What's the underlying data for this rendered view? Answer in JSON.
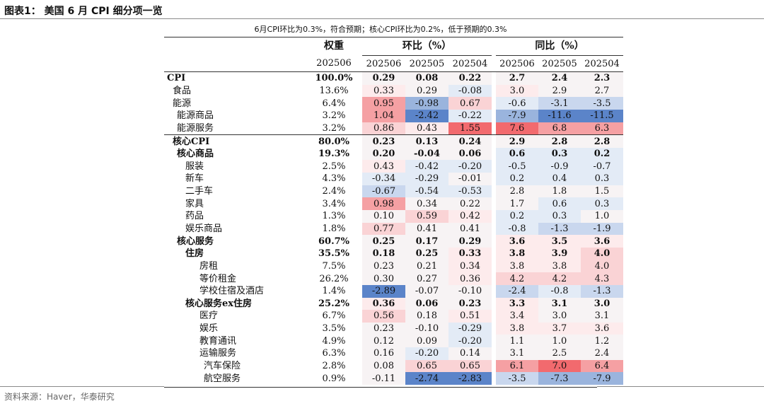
{
  "figure_title": "图表1：  美国 6 月 CPI 细分项一览",
  "subtitle": "6月CPI环比为0.3%，符合预期；核心CPI环比为0.2%，低于预期的0.3%",
  "source": "资料来源：Haver，华泰研究",
  "headers": {
    "weight": "权重",
    "mom": "环比（%）",
    "yoy": "同比（%）",
    "weight_period": "202506",
    "periods": [
      "202506",
      "202505",
      "202504",
      "202506",
      "202505",
      "202504"
    ]
  },
  "colors": {
    "red_strong": "#f26a6e",
    "red_mid": "#f5a0a3",
    "red_light": "#fad3d5",
    "red_faint": "#fdebec",
    "blue_strong": "#5b84c9",
    "blue_mid": "#9ab4dd",
    "blue_light": "#c9d7ee",
    "blue_faint": "#e3ebf6",
    "neutral": "#f7f3f4"
  },
  "rows": [
    {
      "label": "CPI",
      "indent": 0,
      "bold": true,
      "weight": "100.0%",
      "mom": [
        "0.29",
        "0.08",
        "0.22"
      ],
      "yoy": [
        "2.7",
        "2.4",
        "2.3"
      ],
      "mom_c": [
        "neutral",
        "neutral",
        "neutral"
      ],
      "yoy_c": [
        "neutral",
        "neutral",
        "neutral"
      ]
    },
    {
      "label": "食品",
      "indent": 1,
      "bold": false,
      "weight": "13.6%",
      "mom": [
        "0.33",
        "0.29",
        "-0.08"
      ],
      "yoy": [
        "3.0",
        "2.9",
        "2.7"
      ],
      "mom_c": [
        "red_faint",
        "neutral",
        "blue_faint"
      ],
      "yoy_c": [
        "red_faint",
        "neutral",
        "neutral"
      ]
    },
    {
      "label": "能源",
      "indent": 1,
      "bold": false,
      "weight": "6.4%",
      "mom": [
        "0.95",
        "-0.98",
        "0.67"
      ],
      "yoy": [
        "-0.6",
        "-3.1",
        "-3.5"
      ],
      "mom_c": [
        "red_mid",
        "blue_mid",
        "red_light"
      ],
      "yoy_c": [
        "blue_faint",
        "blue_light",
        "blue_light"
      ]
    },
    {
      "label": "能源商品",
      "indent": 2,
      "bold": false,
      "weight": "3.2%",
      "mom": [
        "1.04",
        "-2.42",
        "-0.22"
      ],
      "yoy": [
        "-7.9",
        "-11.6",
        "-11.5"
      ],
      "mom_c": [
        "red_mid",
        "blue_strong",
        "blue_faint"
      ],
      "yoy_c": [
        "blue_mid",
        "blue_strong",
        "blue_strong"
      ]
    },
    {
      "label": "能源服务",
      "indent": 2,
      "bold": false,
      "weight": "3.2%",
      "mom": [
        "0.86",
        "0.43",
        "1.55"
      ],
      "yoy": [
        "7.6",
        "6.8",
        "6.3"
      ],
      "mom_c": [
        "red_light",
        "red_faint",
        "red_strong"
      ],
      "yoy_c": [
        "red_strong",
        "red_mid",
        "red_mid"
      ]
    },
    {
      "label": "核心CPI",
      "indent": 1,
      "bold": true,
      "weight": "80.0%",
      "mom": [
        "0.23",
        "0.13",
        "0.24"
      ],
      "yoy": [
        "2.9",
        "2.8",
        "2.8"
      ],
      "mom_c": [
        "neutral",
        "neutral",
        "neutral"
      ],
      "yoy_c": [
        "neutral",
        "neutral",
        "neutral"
      ]
    },
    {
      "label": "核心商品",
      "indent": 2,
      "bold": true,
      "weight": "19.3%",
      "mom": [
        "0.20",
        "-0.04",
        "0.06"
      ],
      "yoy": [
        "0.6",
        "0.3",
        "0.2"
      ],
      "mom_c": [
        "neutral",
        "neutral",
        "neutral"
      ],
      "yoy_c": [
        "blue_faint",
        "blue_faint",
        "blue_faint"
      ]
    },
    {
      "label": "服装",
      "indent": 3,
      "bold": false,
      "weight": "2.5%",
      "mom": [
        "0.43",
        "-0.42",
        "-0.20"
      ],
      "yoy": [
        "-0.5",
        "-0.9",
        "-0.7"
      ],
      "mom_c": [
        "red_faint",
        "blue_faint",
        "blue_faint"
      ],
      "yoy_c": [
        "blue_faint",
        "blue_faint",
        "blue_faint"
      ]
    },
    {
      "label": "新车",
      "indent": 3,
      "bold": false,
      "weight": "4.3%",
      "mom": [
        "-0.34",
        "-0.29",
        "-0.01"
      ],
      "yoy": [
        "0.2",
        "0.4",
        "0.3"
      ],
      "mom_c": [
        "blue_faint",
        "blue_faint",
        "neutral"
      ],
      "yoy_c": [
        "blue_faint",
        "blue_faint",
        "blue_faint"
      ]
    },
    {
      "label": "二手车",
      "indent": 3,
      "bold": false,
      "weight": "2.4%",
      "mom": [
        "-0.67",
        "-0.54",
        "-0.53"
      ],
      "yoy": [
        "2.8",
        "1.8",
        "1.5"
      ],
      "mom_c": [
        "blue_light",
        "blue_faint",
        "blue_faint"
      ],
      "yoy_c": [
        "neutral",
        "neutral",
        "neutral"
      ]
    },
    {
      "label": "家具",
      "indent": 3,
      "bold": false,
      "weight": "3.4%",
      "mom": [
        "0.98",
        "0.34",
        "0.22"
      ],
      "yoy": [
        "1.7",
        "0.6",
        "0.3"
      ],
      "mom_c": [
        "red_mid",
        "neutral",
        "neutral"
      ],
      "yoy_c": [
        "neutral",
        "blue_faint",
        "blue_faint"
      ]
    },
    {
      "label": "药品",
      "indent": 3,
      "bold": false,
      "weight": "1.3%",
      "mom": [
        "0.10",
        "0.59",
        "0.42"
      ],
      "yoy": [
        "0.2",
        "0.3",
        "1.0"
      ],
      "mom_c": [
        "neutral",
        "red_light",
        "red_faint"
      ],
      "yoy_c": [
        "blue_faint",
        "blue_faint",
        "neutral"
      ]
    },
    {
      "label": "娱乐商品",
      "indent": 3,
      "bold": false,
      "weight": "1.8%",
      "mom": [
        "0.77",
        "0.41",
        "0.41"
      ],
      "yoy": [
        "-0.8",
        "-1.3",
        "-1.9"
      ],
      "mom_c": [
        "red_light",
        "neutral",
        "neutral"
      ],
      "yoy_c": [
        "blue_faint",
        "blue_light",
        "blue_light"
      ]
    },
    {
      "label": "核心服务",
      "indent": 2,
      "bold": true,
      "weight": "60.7%",
      "mom": [
        "0.25",
        "0.17",
        "0.29"
      ],
      "yoy": [
        "3.6",
        "3.5",
        "3.6"
      ],
      "mom_c": [
        "neutral",
        "neutral",
        "neutral"
      ],
      "yoy_c": [
        "red_faint",
        "red_faint",
        "red_faint"
      ]
    },
    {
      "label": "住房",
      "indent": 3,
      "bold": true,
      "weight": "35.5%",
      "mom": [
        "0.18",
        "0.25",
        "0.33"
      ],
      "yoy": [
        "3.8",
        "3.9",
        "4.0"
      ],
      "mom_c": [
        "neutral",
        "neutral",
        "red_faint"
      ],
      "yoy_c": [
        "red_faint",
        "red_faint",
        "red_light"
      ]
    },
    {
      "label": "房租",
      "indent": 4,
      "bold": false,
      "weight": "7.5%",
      "mom": [
        "0.23",
        "0.21",
        "0.34"
      ],
      "yoy": [
        "3.8",
        "3.8",
        "4.0"
      ],
      "mom_c": [
        "neutral",
        "neutral",
        "red_faint"
      ],
      "yoy_c": [
        "red_faint",
        "red_faint",
        "red_light"
      ]
    },
    {
      "label": "等价租金",
      "indent": 4,
      "bold": false,
      "weight": "26.2%",
      "mom": [
        "0.30",
        "0.27",
        "0.36"
      ],
      "yoy": [
        "4.2",
        "4.2",
        "4.3"
      ],
      "mom_c": [
        "neutral",
        "neutral",
        "red_faint"
      ],
      "yoy_c": [
        "red_light",
        "red_light",
        "red_light"
      ]
    },
    {
      "label": "学校住宿及酒店",
      "indent": 4,
      "bold": false,
      "weight": "1.4%",
      "mom": [
        "-2.89",
        "-0.07",
        "-0.10"
      ],
      "yoy": [
        "-2.4",
        "-0.8",
        "-1.3"
      ],
      "mom_c": [
        "blue_strong",
        "neutral",
        "neutral"
      ],
      "yoy_c": [
        "blue_light",
        "blue_faint",
        "blue_light"
      ]
    },
    {
      "label": "核心服务ex住房",
      "indent": 3,
      "bold": true,
      "weight": "25.2%",
      "mom": [
        "0.36",
        "0.06",
        "0.23"
      ],
      "yoy": [
        "3.3",
        "3.1",
        "3.0"
      ],
      "mom_c": [
        "red_faint",
        "neutral",
        "neutral"
      ],
      "yoy_c": [
        "red_faint",
        "neutral",
        "neutral"
      ]
    },
    {
      "label": "医疗",
      "indent": 4,
      "bold": false,
      "weight": "6.7%",
      "mom": [
        "0.56",
        "0.18",
        "0.51"
      ],
      "yoy": [
        "3.4",
        "3.0",
        "3.1"
      ],
      "mom_c": [
        "red_light",
        "neutral",
        "red_faint"
      ],
      "yoy_c": [
        "red_faint",
        "neutral",
        "neutral"
      ]
    },
    {
      "label": "娱乐",
      "indent": 4,
      "bold": false,
      "weight": "3.5%",
      "mom": [
        "0.23",
        "-0.10",
        "-0.29"
      ],
      "yoy": [
        "3.8",
        "3.7",
        "3.6"
      ],
      "mom_c": [
        "neutral",
        "neutral",
        "blue_faint"
      ],
      "yoy_c": [
        "red_faint",
        "red_faint",
        "red_faint"
      ]
    },
    {
      "label": "教育通讯",
      "indent": 4,
      "bold": false,
      "weight": "4.9%",
      "mom": [
        "0.12",
        "0.09",
        "-0.20"
      ],
      "yoy": [
        "1.1",
        "1.0",
        "1.2"
      ],
      "mom_c": [
        "neutral",
        "neutral",
        "blue_faint"
      ],
      "yoy_c": [
        "neutral",
        "neutral",
        "neutral"
      ]
    },
    {
      "label": "运输服务",
      "indent": 4,
      "bold": false,
      "weight": "6.3%",
      "mom": [
        "0.16",
        "-0.20",
        "0.14"
      ],
      "yoy": [
        "3.1",
        "2.5",
        "2.4"
      ],
      "mom_c": [
        "neutral",
        "blue_faint",
        "neutral"
      ],
      "yoy_c": [
        "neutral",
        "neutral",
        "neutral"
      ]
    },
    {
      "label": "汽车保险",
      "indent": 5,
      "bold": false,
      "weight": "2.8%",
      "mom": [
        "0.08",
        "0.65",
        "0.65"
      ],
      "yoy": [
        "6.1",
        "7.0",
        "6.4"
      ],
      "mom_c": [
        "neutral",
        "red_light",
        "red_light"
      ],
      "yoy_c": [
        "red_mid",
        "red_strong",
        "red_mid"
      ]
    },
    {
      "label": "航空服务",
      "indent": 5,
      "bold": false,
      "weight": "0.9%",
      "mom": [
        "-0.11",
        "-2.74",
        "-2.83"
      ],
      "yoy": [
        "-3.5",
        "-7.3",
        "-7.9"
      ],
      "mom_c": [
        "neutral",
        "blue_strong",
        "blue_strong"
      ],
      "yoy_c": [
        "blue_light",
        "blue_mid",
        "blue_mid"
      ]
    }
  ]
}
